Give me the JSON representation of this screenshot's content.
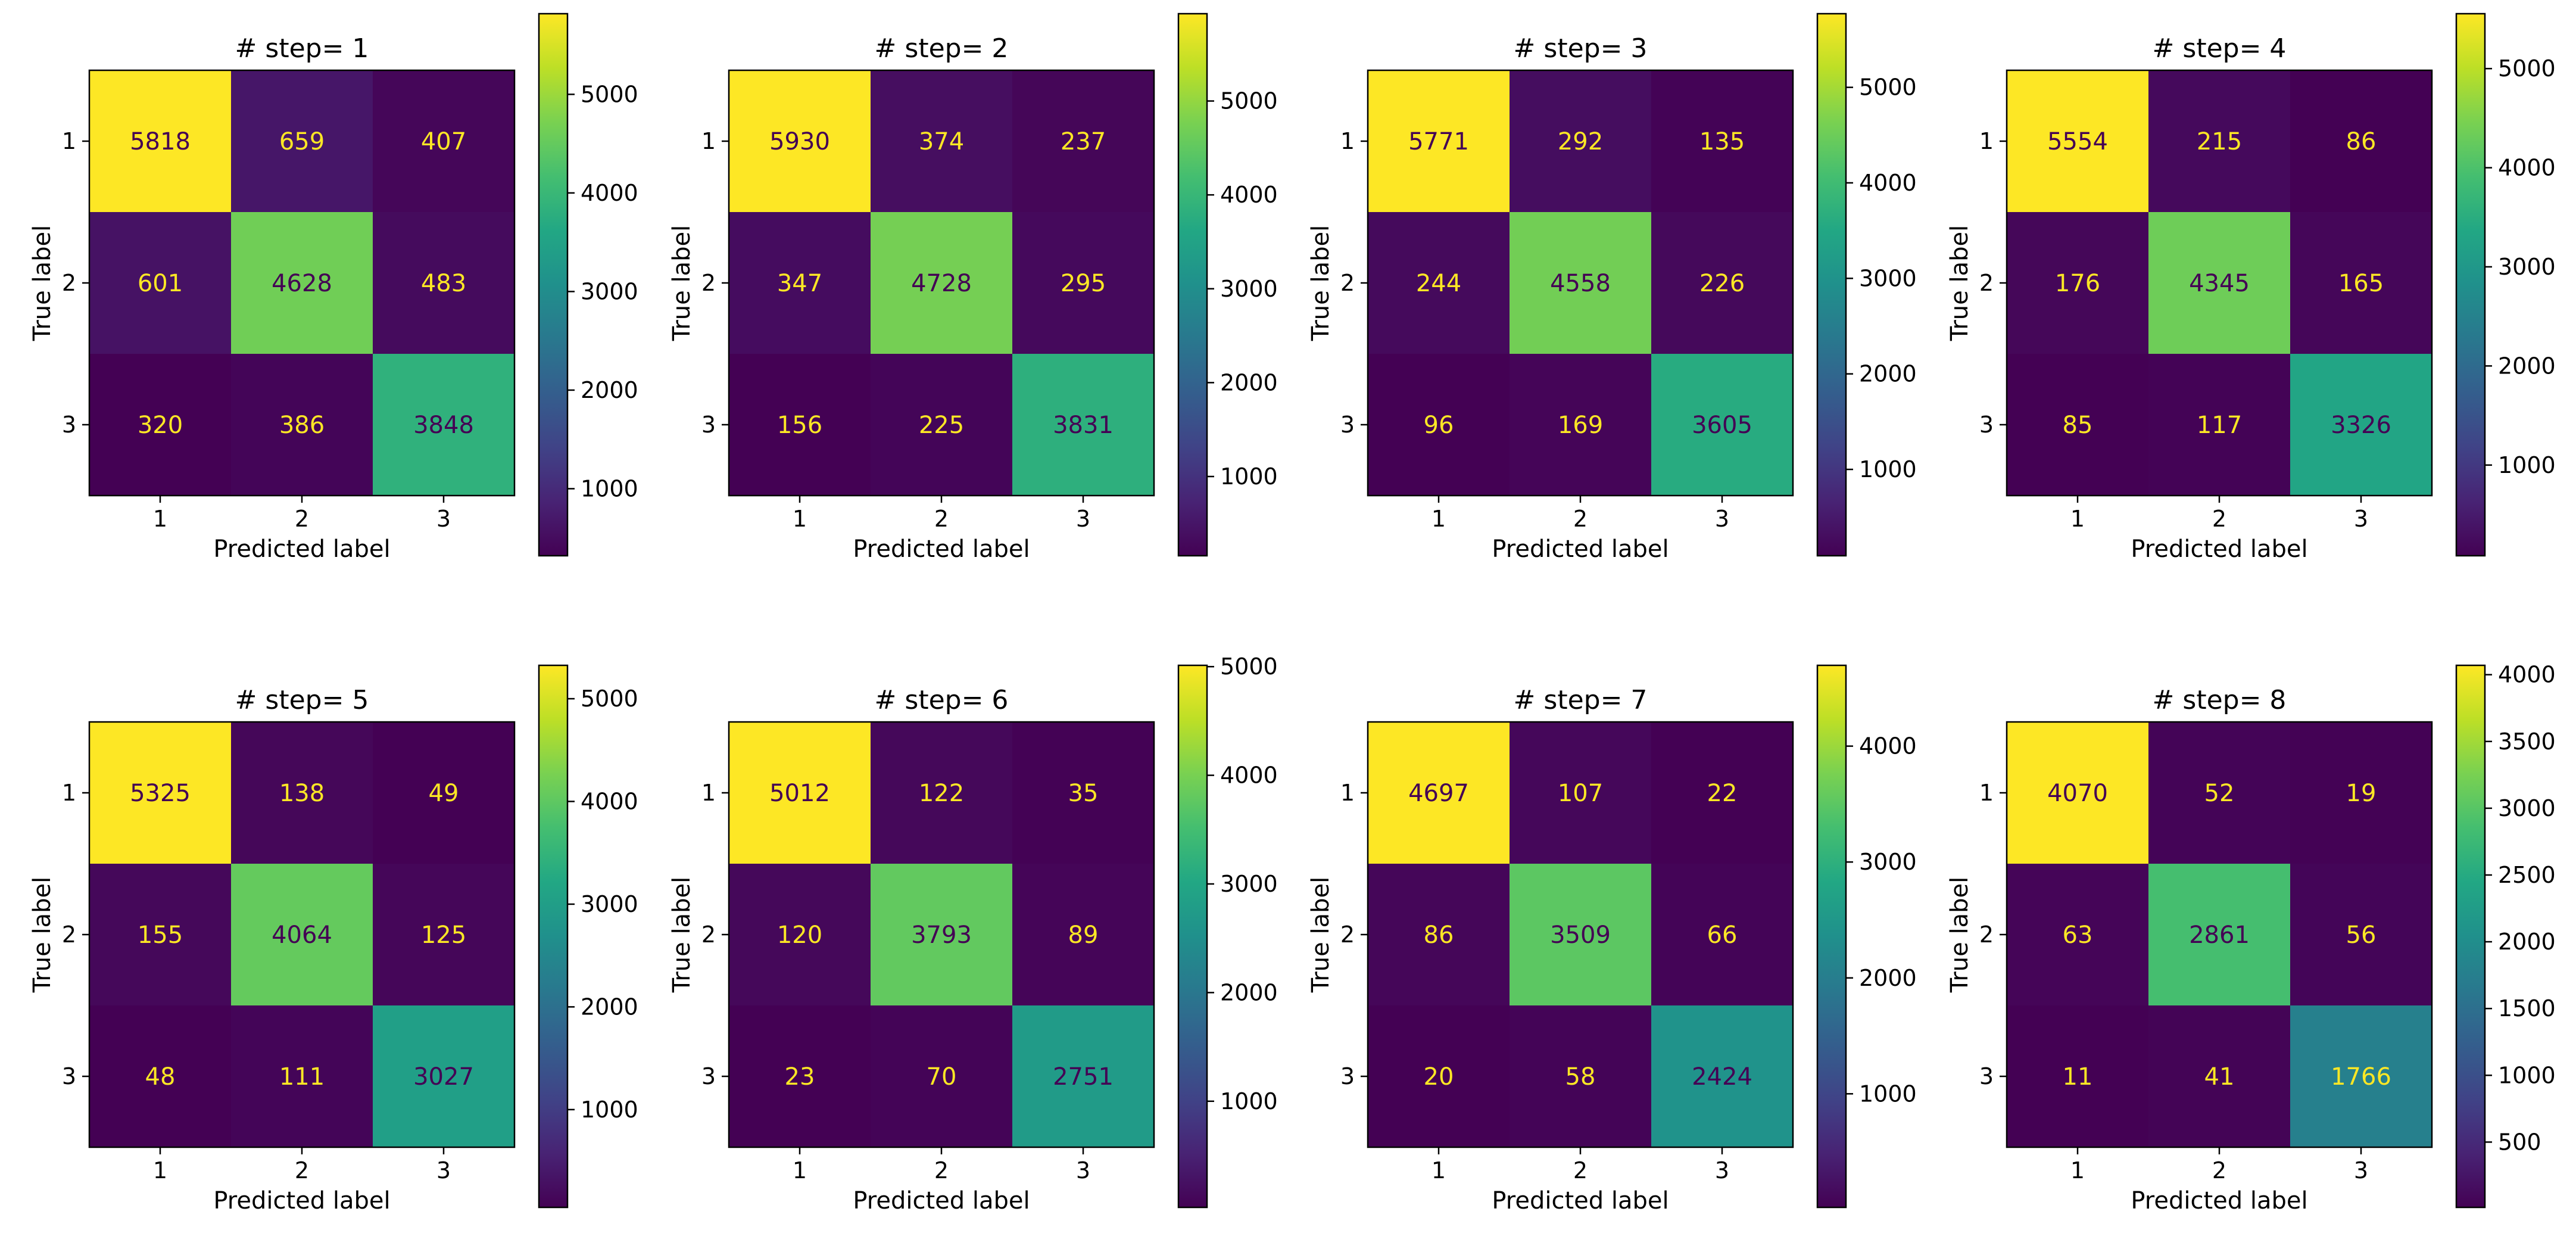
{
  "chart_data": [
    {
      "type": "heatmap",
      "title": "# step= 1",
      "xlabel": "Predicted label",
      "ylabel": "True label",
      "x_categories": [
        "1",
        "2",
        "3"
      ],
      "y_categories": [
        "1",
        "2",
        "3"
      ],
      "matrix": [
        [
          5818,
          659,
          407
        ],
        [
          601,
          4628,
          483
        ],
        [
          320,
          386,
          3848
        ]
      ],
      "colorbar": {
        "ticks": [
          "1000",
          "2000",
          "3000",
          "4000",
          "5000"
        ],
        "tick_values": [
          1000,
          2000,
          3000,
          4000,
          5000
        ]
      }
    },
    {
      "type": "heatmap",
      "title": "# step= 2",
      "xlabel": "Predicted label",
      "ylabel": "True label",
      "x_categories": [
        "1",
        "2",
        "3"
      ],
      "y_categories": [
        "1",
        "2",
        "3"
      ],
      "matrix": [
        [
          5930,
          374,
          237
        ],
        [
          347,
          4728,
          295
        ],
        [
          156,
          225,
          3831
        ]
      ],
      "colorbar": {
        "ticks": [
          "1000",
          "2000",
          "3000",
          "4000",
          "5000"
        ],
        "tick_values": [
          1000,
          2000,
          3000,
          4000,
          5000
        ]
      }
    },
    {
      "type": "heatmap",
      "title": "# step= 3",
      "xlabel": "Predicted label",
      "ylabel": "True label",
      "x_categories": [
        "1",
        "2",
        "3"
      ],
      "y_categories": [
        "1",
        "2",
        "3"
      ],
      "matrix": [
        [
          5771,
          292,
          135
        ],
        [
          244,
          4558,
          226
        ],
        [
          96,
          169,
          3605
        ]
      ],
      "colorbar": {
        "ticks": [
          "1000",
          "2000",
          "3000",
          "4000",
          "5000"
        ],
        "tick_values": [
          1000,
          2000,
          3000,
          4000,
          5000
        ]
      }
    },
    {
      "type": "heatmap",
      "title": "# step= 4",
      "xlabel": "Predicted label",
      "ylabel": "True label",
      "x_categories": [
        "1",
        "2",
        "3"
      ],
      "y_categories": [
        "1",
        "2",
        "3"
      ],
      "matrix": [
        [
          5554,
          215,
          86
        ],
        [
          176,
          4345,
          165
        ],
        [
          85,
          117,
          3326
        ]
      ],
      "colorbar": {
        "ticks": [
          "1000",
          "2000",
          "3000",
          "4000",
          "5000"
        ],
        "tick_values": [
          1000,
          2000,
          3000,
          4000,
          5000
        ]
      }
    },
    {
      "type": "heatmap",
      "title": "# step= 5",
      "xlabel": "Predicted label",
      "ylabel": "True label",
      "x_categories": [
        "1",
        "2",
        "3"
      ],
      "y_categories": [
        "1",
        "2",
        "3"
      ],
      "matrix": [
        [
          5325,
          138,
          49
        ],
        [
          155,
          4064,
          125
        ],
        [
          48,
          111,
          3027
        ]
      ],
      "colorbar": {
        "ticks": [
          "1000",
          "2000",
          "3000",
          "4000",
          "5000"
        ],
        "tick_values": [
          1000,
          2000,
          3000,
          4000,
          5000
        ]
      }
    },
    {
      "type": "heatmap",
      "title": "# step= 6",
      "xlabel": "Predicted label",
      "ylabel": "True label",
      "x_categories": [
        "1",
        "2",
        "3"
      ],
      "y_categories": [
        "1",
        "2",
        "3"
      ],
      "matrix": [
        [
          5012,
          122,
          35
        ],
        [
          120,
          3793,
          89
        ],
        [
          23,
          70,
          2751
        ]
      ],
      "colorbar": {
        "ticks": [
          "1000",
          "2000",
          "3000",
          "4000",
          "5000"
        ],
        "tick_values": [
          1000,
          2000,
          3000,
          4000,
          5000
        ]
      }
    },
    {
      "type": "heatmap",
      "title": "# step= 7",
      "xlabel": "Predicted label",
      "ylabel": "True label",
      "x_categories": [
        "1",
        "2",
        "3"
      ],
      "y_categories": [
        "1",
        "2",
        "3"
      ],
      "matrix": [
        [
          4697,
          107,
          22
        ],
        [
          86,
          3509,
          66
        ],
        [
          20,
          58,
          2424
        ]
      ],
      "colorbar": {
        "ticks": [
          "1000",
          "2000",
          "3000",
          "4000"
        ],
        "tick_values": [
          1000,
          2000,
          3000,
          4000
        ]
      }
    },
    {
      "type": "heatmap",
      "title": "# step= 8",
      "xlabel": "Predicted label",
      "ylabel": "True label",
      "x_categories": [
        "1",
        "2",
        "3"
      ],
      "y_categories": [
        "1",
        "2",
        "3"
      ],
      "matrix": [
        [
          4070,
          52,
          19
        ],
        [
          63,
          2861,
          56
        ],
        [
          11,
          41,
          1766
        ]
      ],
      "colorbar": {
        "ticks": [
          "500",
          "1000",
          "1500",
          "2000",
          "2500",
          "3000",
          "3500",
          "4000"
        ],
        "tick_values": [
          500,
          1000,
          1500,
          2000,
          2500,
          3000,
          3500,
          4000
        ]
      }
    }
  ],
  "colormap": "viridis",
  "colors": {
    "text_on_dark": "#fde725",
    "text_on_light": "#440154"
  }
}
